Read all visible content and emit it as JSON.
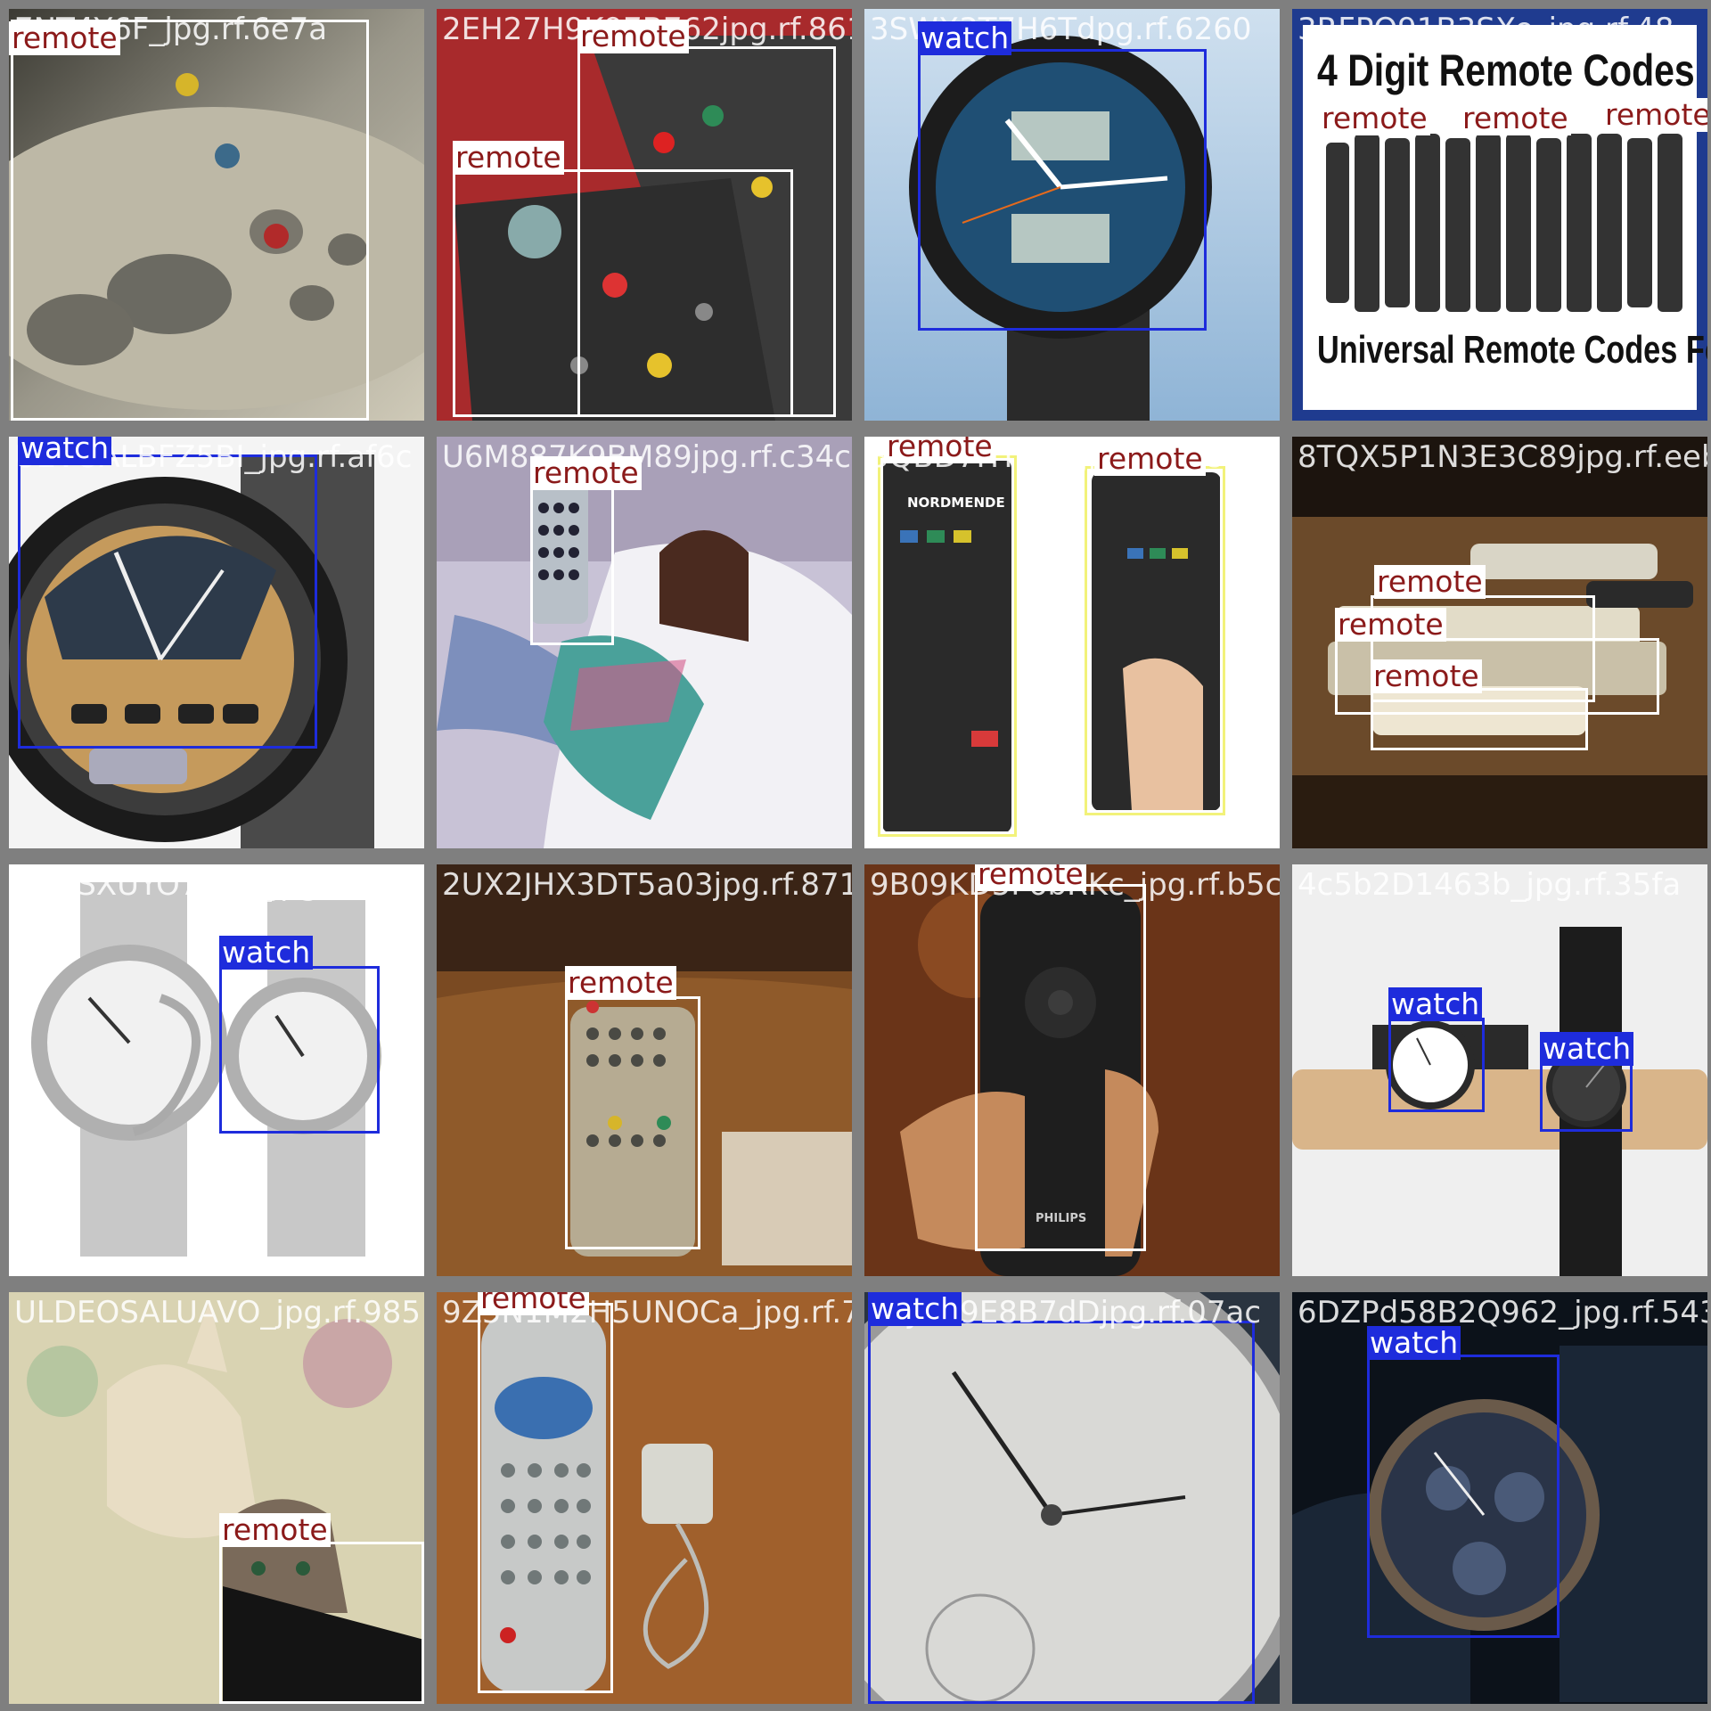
{
  "grid": {
    "tiles": [
      {
        "filename": "7NT4Y6F_jpg.rf.6e7a",
        "style": "remote-closeup-grey",
        "labels": [
          "remote"
        ]
      },
      {
        "filename": "2EH27H9K97B762jpg.rf.861",
        "style": "remotes-red",
        "labels": [
          "remote",
          "remote"
        ]
      },
      {
        "filename": "3SWX3T7H6Tdpg.rf.6260",
        "style": "watch-blue",
        "labels": [
          "watch"
        ]
      },
      {
        "filename": "3RFPQ91B3SXe_jpg.rf.48",
        "style": "remote-codes-poster",
        "labels": [
          "remote",
          "remote",
          "remote"
        ],
        "poster_title": "4 Digit Remote Codes",
        "poster_subtitle": "Universal Remote Codes For TV"
      },
      {
        "filename": "UEVOALBFZ5BI_jpg.rf.af6c",
        "style": "watch-orange",
        "labels": [
          "watch"
        ]
      },
      {
        "filename": "U6M887K9BM89jpg.rf.c34c",
        "style": "girl-remote",
        "labels": [
          "remote"
        ]
      },
      {
        "filename": "3QBD7HT98Gjpg.rf.ad8",
        "style": "nordmende",
        "labels": [
          "remote",
          "remote"
        ],
        "brand": "NORDMENDE"
      },
      {
        "filename": "8TQX5P1N3E3C89jpg.rf.eeb",
        "style": "remotes-table",
        "labels": [
          "remote",
          "remote",
          "remote"
        ]
      },
      {
        "filename": "UGYSXUYO70CL_jpg.rf.9b2",
        "style": "watches-silver",
        "labels": [
          "watch"
        ]
      },
      {
        "filename": "2UX2JHX3DT5a03jpg.rf.871",
        "style": "remote-tan",
        "labels": [
          "remote"
        ]
      },
      {
        "filename": "9B09KD5F6bRKc_jpg.rf.b5c0",
        "style": "philips-remote",
        "labels": [
          "remote"
        ],
        "brand": "PHILIPS"
      },
      {
        "filename": "4c5b2D1463b_jpg.rf.35fa",
        "style": "watches-stand",
        "labels": [
          "watch",
          "watch"
        ]
      },
      {
        "filename": "ULDEOSALUAVO_jpg.rf.985",
        "style": "cat-bunny",
        "labels": [
          "remote"
        ]
      },
      {
        "filename": "9Z5N1M2H5UNOCa_jpg.rf.7d8",
        "style": "ati-remote",
        "labels": [
          "remote"
        ]
      },
      {
        "filename": "3SJXO9E8B7dDjpg.rf.07ac",
        "style": "omega-watch",
        "labels": [
          "watch"
        ]
      },
      {
        "filename": "6DZPd58B2Q962_jpg.rf.543c",
        "style": "watch-navy",
        "labels": [
          "watch"
        ]
      }
    ]
  }
}
